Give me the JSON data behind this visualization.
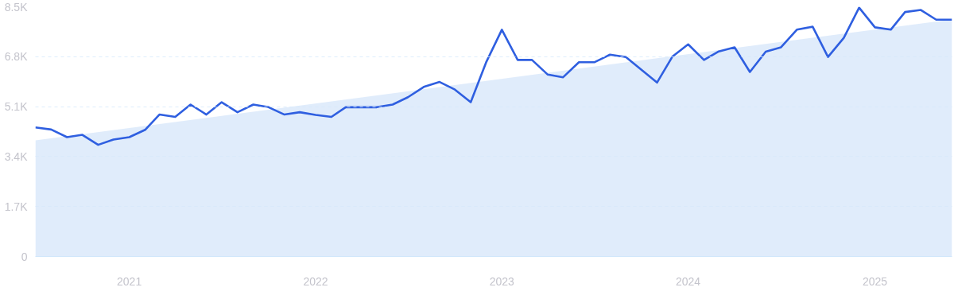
{
  "chart_data": {
    "type": "line",
    "x": [
      "2020-07",
      "2020-08",
      "2020-09",
      "2020-10",
      "2020-11",
      "2020-12",
      "2021-01",
      "2021-02",
      "2021-03",
      "2021-04",
      "2021-05",
      "2021-06",
      "2021-07",
      "2021-08",
      "2021-09",
      "2021-10",
      "2021-11",
      "2021-12",
      "2022-01",
      "2022-02",
      "2022-03",
      "2022-04",
      "2022-05",
      "2022-06",
      "2022-07",
      "2022-08",
      "2022-09",
      "2022-10",
      "2022-11",
      "2022-12",
      "2023-01",
      "2023-02",
      "2023-03",
      "2023-04",
      "2023-05",
      "2023-06",
      "2023-07",
      "2023-08",
      "2023-09",
      "2023-10",
      "2023-11",
      "2023-12",
      "2024-01",
      "2024-02",
      "2024-03",
      "2024-04",
      "2024-05",
      "2024-06",
      "2024-07",
      "2024-08",
      "2024-09",
      "2024-10",
      "2024-11",
      "2024-12",
      "2025-01",
      "2025-02",
      "2025-03",
      "2025-04",
      "2025-05",
      "2025-06"
    ],
    "series": [
      {
        "type": "area",
        "color": "#dbe9fa",
        "x": [
          "2020-07",
          "2025-06"
        ],
        "values": [
          3950,
          8070
        ]
      },
      {
        "color": "#2f5fe0",
        "values": [
          4390,
          4320,
          4060,
          4140,
          3800,
          3980,
          4060,
          4310,
          4830,
          4750,
          5170,
          4830,
          5250,
          4910,
          5170,
          5080,
          4830,
          4910,
          4820,
          4750,
          5080,
          5080,
          5080,
          5170,
          5420,
          5770,
          5940,
          5680,
          5250,
          6600,
          7720,
          6690,
          6690,
          6190,
          6100,
          6610,
          6610,
          6870,
          6790,
          6360,
          5920,
          6800,
          7220,
          6690,
          6980,
          7120,
          6280,
          6970,
          7120,
          7720,
          7820,
          6790,
          7440,
          8470,
          7800,
          7720,
          8320,
          8390,
          8060,
          8060
        ]
      }
    ],
    "xlim": [
      "2020-07",
      "2025-06"
    ],
    "xticks": [
      {
        "value": "2021-01",
        "label": "2021"
      },
      {
        "value": "2022-01",
        "label": "2022"
      },
      {
        "value": "2023-01",
        "label": "2023"
      },
      {
        "value": "2024-01",
        "label": "2024"
      },
      {
        "value": "2025-01",
        "label": "2025"
      }
    ],
    "ylim": [
      0,
      8500
    ],
    "yticks": [
      0,
      {
        "value": 1700,
        "label": "1.7K"
      },
      {
        "value": 3400,
        "label": "3.4K"
      },
      {
        "value": 5100,
        "label": "5.1K"
      },
      {
        "value": 6800,
        "label": "6.8K"
      },
      {
        "value": 8500,
        "label": "8.5K"
      }
    ],
    "grid": "y",
    "line_style": "solid"
  }
}
